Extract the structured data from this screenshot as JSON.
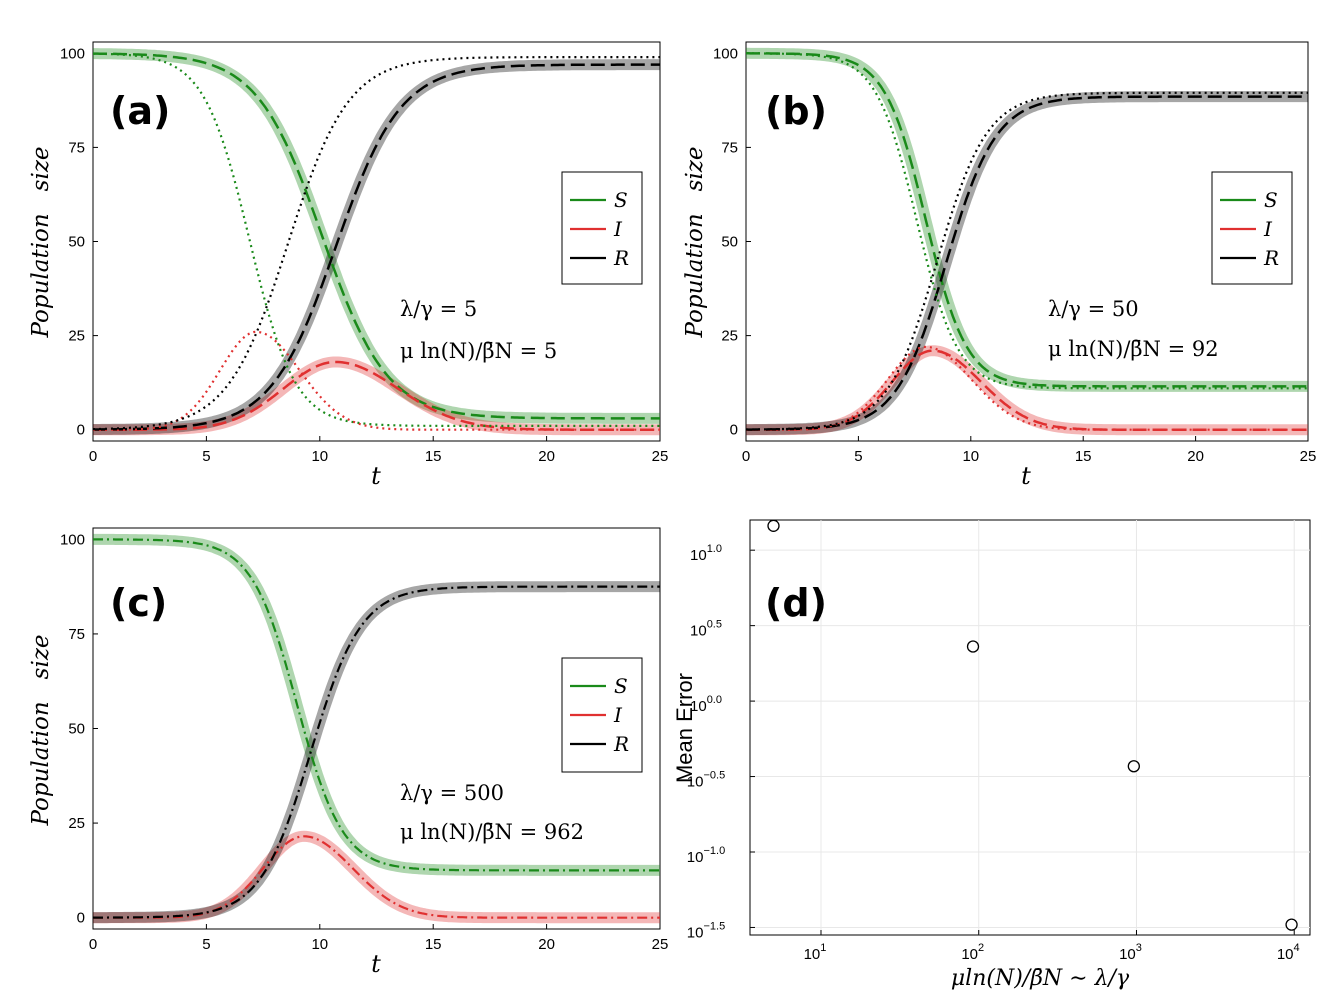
{
  "chart_data": [
    {
      "panel": "a",
      "type": "line",
      "panel_label": "(a)",
      "xlabel": "t",
      "ylabel": "Population   size",
      "xlim": [
        0,
        25
      ],
      "ylim": [
        -3,
        103
      ],
      "xticks": [
        0,
        5,
        10,
        15,
        20,
        25
      ],
      "yticks": [
        0,
        25,
        50,
        75,
        100
      ],
      "legend": {
        "position": "right",
        "entries": [
          "S",
          "I",
          "R"
        ]
      },
      "annotations": [
        "λ/γ = 5",
        "μ ln(N)/β̄N = 5"
      ],
      "series": [
        {
          "name": "S",
          "style": "band",
          "color": "#1a8a1a",
          "t0": 10.1,
          "k": 0.7,
          "tail": 3
        },
        {
          "name": "I",
          "style": "band",
          "color": "#e03030",
          "t0": 10.7,
          "w": 2.3,
          "peak": 18
        },
        {
          "name": "R",
          "style": "band",
          "color": "#000000",
          "t0": 10.7,
          "k": 0.7,
          "tail": 97
        },
        {
          "name": "S",
          "style": "dashed",
          "color": "#1a8a1a",
          "t0": 10.1,
          "k": 0.7,
          "tail": 3
        },
        {
          "name": "I",
          "style": "dashed",
          "color": "#e03030",
          "t0": 10.7,
          "w": 2.3,
          "peak": 18
        },
        {
          "name": "R",
          "style": "dashed",
          "color": "#000000",
          "t0": 10.7,
          "k": 0.7,
          "tail": 97
        },
        {
          "name": "S",
          "style": "dotted",
          "color": "#1a8a1a",
          "t0": 6.9,
          "k": 1.0,
          "tail": 1
        },
        {
          "name": "I",
          "style": "dotted",
          "color": "#e03030",
          "t0": 7.2,
          "w": 1.6,
          "peak": 26
        },
        {
          "name": "R",
          "style": "dotted",
          "color": "#000000",
          "t0": 8.6,
          "k": 0.75,
          "tail": 99
        }
      ]
    },
    {
      "panel": "b",
      "type": "line",
      "panel_label": "(b)",
      "xlabel": "t",
      "ylabel": "Population   size",
      "xlim": [
        0,
        25
      ],
      "ylim": [
        -3,
        103
      ],
      "xticks": [
        0,
        5,
        10,
        15,
        20,
        25
      ],
      "yticks": [
        0,
        25,
        50,
        75,
        100
      ],
      "legend": {
        "position": "right",
        "entries": [
          "S",
          "I",
          "R"
        ]
      },
      "annotations": [
        "λ/γ = 50",
        "μ ln(N)/β̄N = 92"
      ],
      "series": [
        {
          "name": "S",
          "style": "band",
          "color": "#1a8a1a",
          "t0": 8.0,
          "k": 1.1,
          "tail": 11.5
        },
        {
          "name": "I",
          "style": "band",
          "color": "#e03030",
          "t0": 8.3,
          "w": 1.8,
          "peak": 21
        },
        {
          "name": "R",
          "style": "band",
          "color": "#000000",
          "t0": 8.9,
          "k": 0.9,
          "tail": 88.5
        },
        {
          "name": "S",
          "style": "dashed",
          "color": "#1a8a1a",
          "t0": 8.0,
          "k": 1.1,
          "tail": 11.5
        },
        {
          "name": "I",
          "style": "dashed",
          "color": "#e03030",
          "t0": 8.3,
          "w": 1.8,
          "peak": 21
        },
        {
          "name": "R",
          "style": "dashed",
          "color": "#000000",
          "t0": 8.9,
          "k": 0.9,
          "tail": 88.5
        },
        {
          "name": "S",
          "style": "dotted",
          "color": "#1a8a1a",
          "t0": 7.6,
          "k": 1.1,
          "tail": 11
        },
        {
          "name": "I",
          "style": "dotted",
          "color": "#e03030",
          "t0": 8.0,
          "w": 1.7,
          "peak": 22
        },
        {
          "name": "R",
          "style": "dotted",
          "color": "#000000",
          "t0": 8.5,
          "k": 0.9,
          "tail": 89.5
        }
      ]
    },
    {
      "panel": "c",
      "type": "line",
      "panel_label": "(c)",
      "xlabel": "t",
      "ylabel": "Population   size",
      "xlim": [
        0,
        25
      ],
      "ylim": [
        -3,
        103
      ],
      "xticks": [
        0,
        5,
        10,
        15,
        20,
        25
      ],
      "yticks": [
        0,
        25,
        50,
        75,
        100
      ],
      "legend": {
        "position": "right",
        "entries": [
          "S",
          "I",
          "R"
        ]
      },
      "annotations": [
        "λ/γ = 500",
        "μ ln(N)/β̄N = 962"
      ],
      "series": [
        {
          "name": "S",
          "style": "band",
          "color": "#1a8a1a",
          "t0": 9.0,
          "k": 1.0,
          "tail": 12.5
        },
        {
          "name": "I",
          "style": "band",
          "color": "#e03030",
          "t0": 9.3,
          "w": 1.8,
          "peak": 21.5
        },
        {
          "name": "R",
          "style": "band",
          "color": "#000000",
          "t0": 9.6,
          "k": 0.9,
          "tail": 87.5
        },
        {
          "name": "S",
          "style": "dashdot",
          "color": "#1a8a1a",
          "t0": 9.0,
          "k": 1.0,
          "tail": 12.5
        },
        {
          "name": "I",
          "style": "dashdot",
          "color": "#e03030",
          "t0": 9.3,
          "w": 1.8,
          "peak": 21.5
        },
        {
          "name": "R",
          "style": "dashdot",
          "color": "#000000",
          "t0": 9.6,
          "k": 0.9,
          "tail": 87.5
        }
      ]
    },
    {
      "panel": "d",
      "type": "scatter",
      "panel_label": "(d)",
      "xscale": "log",
      "yscale": "log",
      "xlabel": "μln(N)/β̄N ∼ λ/γ",
      "ylabel": "Mean Error",
      "xlim_log10": [
        0.55,
        4.1
      ],
      "ylim_log10": [
        -1.55,
        1.2
      ],
      "xticks": [
        {
          "base": "10",
          "exp": "1",
          "log": 1
        },
        {
          "base": "10",
          "exp": "2",
          "log": 2
        },
        {
          "base": "10",
          "exp": "3",
          "log": 3
        },
        {
          "base": "10",
          "exp": "4",
          "log": 4
        }
      ],
      "yticks": [
        {
          "base": "10",
          "exp": "1.0",
          "log": 1.0
        },
        {
          "base": "10",
          "exp": "0.5",
          "log": 0.5
        },
        {
          "base": "10",
          "exp": "0.0",
          "log": 0.0
        },
        {
          "base": "10",
          "exp": "−0.5",
          "log": -0.5
        },
        {
          "base": "10",
          "exp": "−1.0",
          "log": -1.0
        },
        {
          "base": "10",
          "exp": "−1.5",
          "log": -1.5
        }
      ],
      "points": [
        {
          "x": 5,
          "y": 14.5
        },
        {
          "x": 92,
          "y": 2.3
        },
        {
          "x": 962,
          "y": 0.37
        },
        {
          "x": 9620,
          "y": 0.033
        }
      ]
    }
  ]
}
